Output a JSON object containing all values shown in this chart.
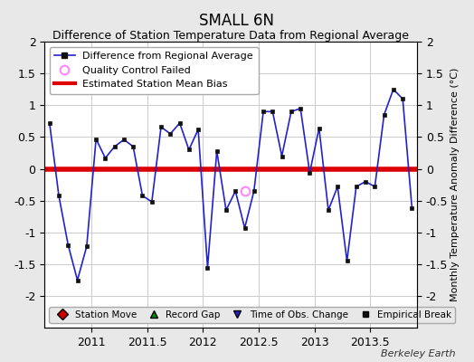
{
  "title": "SMALL 6N",
  "subtitle": "Difference of Station Temperature Data from Regional Average",
  "ylabel": "Monthly Temperature Anomaly Difference (°C)",
  "credit": "Berkeley Earth",
  "xlim": [
    2010.58,
    2013.92
  ],
  "ylim": [
    -2.5,
    2.0
  ],
  "yticks": [
    -2.0,
    -1.5,
    -1.0,
    -0.5,
    0.0,
    0.5,
    1.0,
    1.5,
    2.0
  ],
  "xticks": [
    2011.0,
    2011.5,
    2012.0,
    2012.5,
    2013.0,
    2013.5
  ],
  "xtick_labels": [
    "2011",
    "2011.5",
    "2012",
    "2012.5",
    "2013",
    "2013.5"
  ],
  "ytick_labels": [
    "-2",
    "-1.5",
    "-1",
    "-0.5",
    "0",
    "0.5",
    "1",
    "1.5",
    "2"
  ],
  "mean_bias": 0.0,
  "background_color": "#e8e8e8",
  "plot_bg_color": "#ffffff",
  "line_color": "#2222cc",
  "bias_color": "#dd0000",
  "qc_color": "#ff88ff",
  "data_x": [
    2010.625,
    2010.708,
    2010.792,
    2010.875,
    2010.958,
    2011.042,
    2011.125,
    2011.208,
    2011.292,
    2011.375,
    2011.458,
    2011.542,
    2011.625,
    2011.708,
    2011.792,
    2011.875,
    2011.958,
    2012.042,
    2012.125,
    2012.208,
    2012.292,
    2012.375,
    2012.458,
    2012.542,
    2012.625,
    2012.708,
    2012.792,
    2012.875,
    2012.958,
    2013.042,
    2013.125,
    2013.208,
    2013.292,
    2013.375,
    2013.458,
    2013.542,
    2013.625,
    2013.708,
    2013.792,
    2013.875
  ],
  "data_y": [
    0.72,
    -0.42,
    -1.2,
    -1.75,
    -1.22,
    0.47,
    0.17,
    0.35,
    0.46,
    0.35,
    -0.42,
    -0.52,
    0.66,
    0.55,
    0.72,
    0.3,
    0.62,
    -1.55,
    0.28,
    -0.65,
    -0.35,
    -0.93,
    -0.35,
    0.9,
    0.9,
    0.2,
    0.9,
    0.95,
    -0.06,
    0.64,
    -0.65,
    -0.28,
    -1.45,
    -0.28,
    -0.2,
    -0.28,
    0.85,
    1.25,
    1.1,
    -0.62
  ],
  "qc_x": [
    2012.375
  ],
  "qc_y": [
    -0.35
  ],
  "title_fontsize": 12,
  "subtitle_fontsize": 9,
  "tick_fontsize": 9,
  "ylabel_fontsize": 8
}
